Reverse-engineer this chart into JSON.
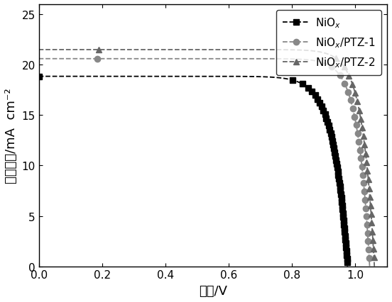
{
  "title": "",
  "xlabel": "电压/V",
  "ylabel": "电流密度/mA  cm⁻²",
  "xlim": [
    0.0,
    1.1
  ],
  "ylim": [
    0.0,
    26
  ],
  "yticks": [
    0,
    5,
    10,
    15,
    20,
    25
  ],
  "xticks": [
    0.0,
    0.2,
    0.4,
    0.6,
    0.8,
    1.0
  ],
  "series": [
    {
      "label": "NiO$_x$",
      "color": "#000000",
      "linestyle": "--",
      "marker": "s",
      "markersize": 6,
      "Jsc": 18.85,
      "Voc": 0.975,
      "ideality": 22.0,
      "n_markers": 50
    },
    {
      "label": "NiO$_x$/PTZ-1",
      "color": "#888888",
      "linestyle": "--",
      "marker": "o",
      "markersize": 6,
      "Jsc": 20.6,
      "Voc": 1.045,
      "ideality": 28.0,
      "n_markers": 25
    },
    {
      "label": "NiO$_x$/PTZ-2",
      "color": "#666666",
      "linestyle": "--",
      "marker": "^",
      "markersize": 6,
      "Jsc": 21.5,
      "Voc": 1.06,
      "ideality": 28.0,
      "n_markers": 25
    }
  ],
  "legend_fontsize": 11,
  "axis_fontsize": 13,
  "tick_fontsize": 11,
  "figsize": [
    5.52,
    4.27
  ],
  "dpi": 100
}
